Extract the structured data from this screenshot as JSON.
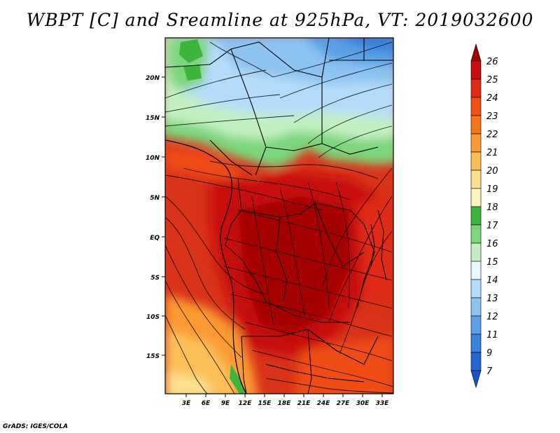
{
  "title": "WBPT [C] and Sreamline at 925hPa, VT: 2019032600",
  "credit": "GrADS: IGES/COLA",
  "map": {
    "lat_ticks": [
      "20N",
      "15N",
      "10N",
      "5N",
      "EQ",
      "5S",
      "10S",
      "15S"
    ],
    "lon_ticks": [
      "3E",
      "6E",
      "9E",
      "12E",
      "15E",
      "18E",
      "21E",
      "24E",
      "27E",
      "30E",
      "33E"
    ]
  },
  "colorbar": {
    "levels": [
      "26",
      "25",
      "24",
      "23",
      "22",
      "21",
      "20",
      "19",
      "18",
      "17",
      "16",
      "15",
      "14",
      "13",
      "12",
      "11",
      "9",
      "7"
    ],
    "colors": [
      "#a50000",
      "#c80f0f",
      "#e02a12",
      "#f04e12",
      "#f7761c",
      "#fa9a32",
      "#fcbf58",
      "#fce08e",
      "#fff5c0",
      "#3bb53b",
      "#7bd67b",
      "#c3efc3",
      "#e9f7ff",
      "#b4dcfa",
      "#8cc3f0",
      "#5aa0e6",
      "#3b82dc",
      "#2166d0",
      "#1955c4"
    ]
  }
}
